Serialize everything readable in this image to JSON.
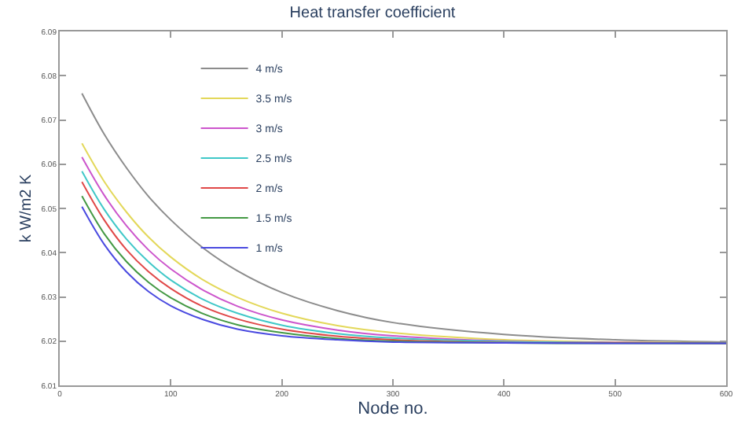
{
  "chart_data": {
    "type": "line",
    "title": "Heat transfer coefficient",
    "xlabel": "Node no.",
    "ylabel": "k W/m2 K",
    "x": [
      20,
      40,
      60,
      80,
      100,
      130,
      160,
      200,
      250,
      300,
      400,
      500,
      600
    ],
    "xlim": [
      0,
      600
    ],
    "xticks": [
      0,
      100,
      200,
      300,
      400,
      500,
      600
    ],
    "ylim": [
      6.01,
      6.09
    ],
    "yticks": [
      6.01,
      6.02,
      6.03,
      6.04,
      6.05,
      6.06,
      6.07,
      6.08,
      6.09
    ],
    "legend": "top left",
    "marker": "none",
    "line_style": "solid",
    "series": [
      {
        "name": "4 m/s",
        "color": "#8c8c8c",
        "values": [
          6.076,
          6.0668,
          6.0592,
          6.0527,
          6.0474,
          6.0409,
          6.0359,
          6.031,
          6.0269,
          6.0242,
          6.0215,
          6.0203,
          6.0198
        ]
      },
      {
        "name": "3.5 m/s",
        "color": "#e3d85a",
        "values": [
          6.0647,
          6.0561,
          6.0492,
          6.0435,
          6.039,
          6.0337,
          6.0299,
          6.0263,
          6.0235,
          6.0219,
          6.0203,
          6.0198,
          6.0196
        ]
      },
      {
        "name": "3 m/s",
        "color": "#cc55cc",
        "values": [
          6.0616,
          6.053,
          6.0461,
          6.0406,
          6.0363,
          6.0314,
          6.0279,
          6.0248,
          6.0225,
          6.0212,
          6.02,
          6.0197,
          6.0195
        ]
      },
      {
        "name": "2.5 m/s",
        "color": "#40c8c8",
        "values": [
          6.0584,
          6.0498,
          6.0431,
          6.0379,
          6.0338,
          6.0293,
          6.0263,
          6.0236,
          6.0217,
          6.0207,
          6.0199,
          6.0196,
          6.0195
        ]
      },
      {
        "name": "2 m/s",
        "color": "#e04848",
        "values": [
          6.056,
          6.0474,
          6.0407,
          6.0357,
          6.0319,
          6.0277,
          6.025,
          6.0227,
          6.0211,
          6.0203,
          6.0197,
          6.0196,
          6.0195
        ]
      },
      {
        "name": "1.5 m/s",
        "color": "#449944",
        "values": [
          6.0528,
          6.0443,
          6.038,
          6.0333,
          6.0298,
          6.0261,
          6.0237,
          6.0219,
          6.0206,
          6.02,
          6.0196,
          6.0195,
          6.0195
        ]
      },
      {
        "name": "1 m/s",
        "color": "#4a4ae0",
        "values": [
          6.0504,
          6.0419,
          6.0357,
          6.0312,
          6.028,
          6.0248,
          6.0227,
          6.0212,
          6.0203,
          6.0198,
          6.0196,
          6.0195,
          6.0195
        ]
      }
    ]
  }
}
